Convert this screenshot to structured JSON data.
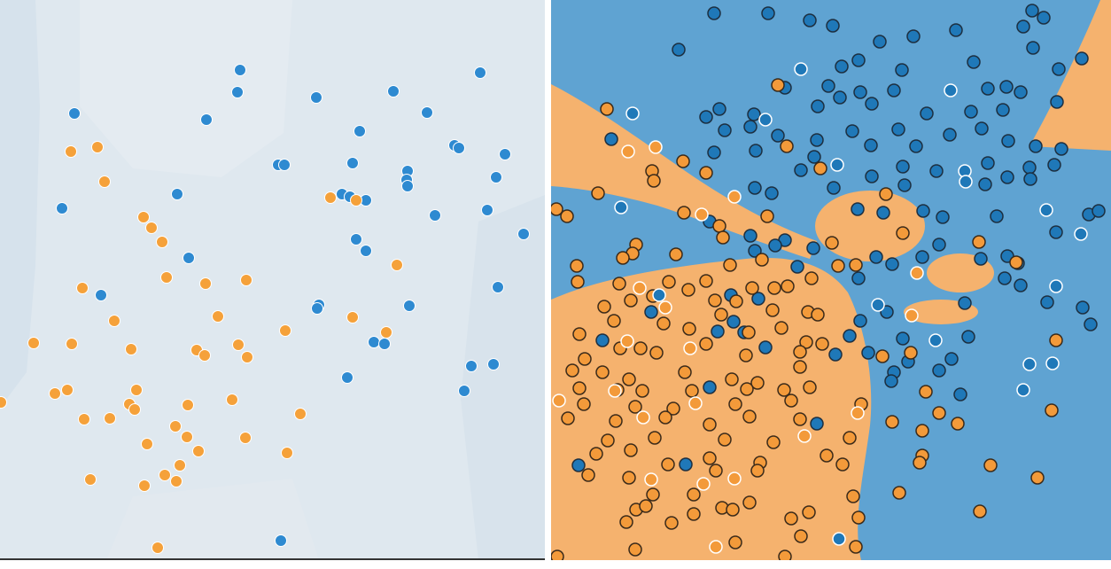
{
  "chart_data": [
    {
      "type": "scatter",
      "xlim": [
        0,
        615
      ],
      "ylim": [
        630,
        0
      ],
      "series": [
        {
          "color": "#2e8ad1",
          "outline": "#ffffff",
          "x": [
            271,
            268,
            542,
            444,
            357,
            84,
            233,
            482,
            406,
            513,
            518,
            570,
            314,
            321,
            398,
            460,
            459,
            460,
            560,
            200,
            386,
            395,
            413,
            70,
            491,
            550,
            591,
            402,
            413,
            213,
            562,
            114,
            462,
            360,
            358,
            422,
            434,
            557,
            532,
            392,
            524,
            317
          ],
          "values": [
            79,
            104,
            82,
            103,
            110,
            128,
            135,
            127,
            148,
            164,
            167,
            174,
            186,
            186,
            184,
            193,
            203,
            210,
            200,
            219,
            219,
            222,
            226,
            235,
            243,
            237,
            264,
            270,
            283,
            291,
            324,
            333,
            345,
            344,
            348,
            386,
            388,
            411,
            413,
            426,
            441,
            610
          ]
        },
        {
          "color": "#f5a13a",
          "outline": "#ffffff",
          "x": [
            80,
            110,
            118,
            373,
            402,
            162,
            171,
            183,
            448,
            188,
            93,
            232,
            278,
            246,
            129,
            398,
            322,
            436,
            38,
            81,
            148,
            269,
            222,
            231,
            279,
            76,
            62,
            154,
            146,
            152,
            212,
            262,
            95,
            124,
            339,
            198,
            211,
            277,
            166,
            224,
            324,
            203,
            186,
            199,
            102,
            163,
            1,
            178
          ],
          "values": [
            171,
            166,
            205,
            223,
            226,
            245,
            257,
            273,
            299,
            313,
            325,
            320,
            316,
            357,
            362,
            358,
            373,
            375,
            387,
            388,
            394,
            389,
            395,
            401,
            403,
            440,
            444,
            440,
            456,
            462,
            457,
            451,
            473,
            472,
            467,
            481,
            493,
            494,
            501,
            509,
            511,
            525,
            536,
            543,
            541,
            548,
            454,
            618
          ]
        }
      ]
    },
    {
      "type": "scatter",
      "xlim": [
        0,
        632
      ],
      "ylim": [
        630,
        0
      ],
      "series": [
        {
          "color": "#1f78b8",
          "outline": "#1d2f40",
          "x": [
            184,
            245,
            292,
            318,
            543,
            556,
            144,
            371,
            409,
            457,
            477,
            533,
            544,
            328,
            347,
            396,
            573,
            599,
            264,
            313,
            326,
            349,
            387,
            493,
            514,
            530,
            571,
            175,
            190,
            229,
            301,
            362,
            424,
            474,
            510,
            68,
            196,
            225,
            256,
            300,
            340,
            392,
            450,
            486,
            516,
            184,
            231,
            297,
            361,
            412,
            547,
            576,
            282,
            362,
            397,
            435,
            493,
            540,
            568,
            230,
            249,
            319,
            399,
            490,
            515,
            541,
            179,
            225,
            264,
            346,
            375,
            420,
            442,
            503,
            607,
            618,
            570,
            230,
            253,
            296,
            367,
            419,
            438,
            485,
            515,
            527,
            278,
            347,
            385,
            203,
            234,
            512,
            530,
            113,
            206,
            188,
            218,
            349,
            379,
            467,
            560,
            600,
            609,
            337,
            397,
            471,
            242,
            321,
            358,
            452,
            438,
            387,
            58,
            179,
            462,
            300,
            31,
            152,
            384,
            403
          ],
          "values": [
            15,
            15,
            23,
            29,
            12,
            20,
            56,
            47,
            41,
            34,
            70,
            30,
            54,
            75,
            68,
            79,
            78,
            66,
            99,
            97,
            110,
            104,
            102,
            100,
            98,
            104,
            115,
            132,
            123,
            129,
            120,
            117,
            128,
            126,
            124,
            157,
            147,
            143,
            153,
            158,
            148,
            146,
            152,
            145,
            159,
            172,
            170,
            177,
            164,
            165,
            165,
            168,
            192,
            199,
            188,
            193,
            184,
            189,
            186,
            212,
            218,
            212,
            209,
            208,
            200,
            202,
            250,
            266,
            271,
            236,
            240,
            238,
            245,
            244,
            242,
            238,
            262,
            283,
            277,
            280,
            290,
            290,
            276,
            292,
            289,
            297,
            301,
            314,
            298,
            333,
            337,
            314,
            322,
            352,
            363,
            374,
            375,
            362,
            352,
            342,
            341,
            347,
            366,
            379,
            382,
            380,
            392,
            400,
            398,
            405,
            418,
            420,
            384,
            437,
            445,
            478,
            525,
            524,
            430,
            408
          ]
        },
        {
          "color": "#f39a3a",
          "outline": "#3a2a1a",
          "x": [
            63,
            256,
            266,
            304,
            378,
            6,
            18,
            53,
            114,
            116,
            149,
            175,
            150,
            190,
            194,
            244,
            96,
            92,
            81,
            141,
            202,
            238,
            29,
            30,
            77,
            133,
            155,
            175,
            227,
            252,
            267,
            294,
            317,
            324,
            344,
            397,
            483,
            525,
            60,
            90,
            115,
            185,
            209,
            250,
            290,
            301,
            32,
            71,
            127,
            156,
            192,
            223,
            260,
            288,
            306,
            38,
            78,
            101,
            119,
            175,
            220,
            281,
            374,
            406,
            570,
            24,
            58,
            88,
            151,
            204,
            233,
            281,
            32,
            75,
            103,
            159,
            221,
            263,
            292,
            37,
            95,
            138,
            208,
            271,
            350,
            423,
            19,
            73,
            129,
            179,
            224,
            281,
            385,
            438,
            459,
            565,
            64,
            117,
            196,
            251,
            337,
            419,
            51,
            90,
            132,
            179,
            236,
            311,
            419,
            496,
            42,
            88,
            186,
            233,
            329,
            416,
            549,
            115,
            161,
            224,
            341,
            393,
            96,
            107,
            161,
            193,
            205,
            271,
            291,
            347,
            484,
            85,
            136,
            282,
            208,
            95,
            344,
            7,
            264
          ],
          "values": [
            123,
            96,
            165,
            190,
            219,
            236,
            244,
            218,
            193,
            204,
            182,
            195,
            240,
            255,
            268,
            244,
            276,
            286,
            291,
            287,
            299,
            293,
            300,
            318,
            320,
            318,
            327,
            317,
            325,
            325,
            323,
            314,
            274,
            300,
            299,
            263,
            273,
            296,
            346,
            339,
            334,
            339,
            340,
            350,
            352,
            355,
            377,
            362,
            365,
            371,
            355,
            375,
            370,
            386,
            388,
            405,
            393,
            393,
            398,
            388,
            401,
            397,
            402,
            398,
            384,
            418,
            420,
            428,
            420,
            428,
            432,
            414,
            438,
            440,
            441,
            441,
            439,
            440,
            437,
            456,
            459,
            461,
            456,
            452,
            456,
            442,
            472,
            475,
            471,
            479,
            470,
            473,
            476,
            466,
            478,
            463,
            497,
            494,
            496,
            499,
            494,
            486,
            512,
            508,
            524,
            517,
            522,
            514,
            514,
            525,
            536,
            539,
            531,
            531,
            524,
            522,
            539,
            558,
            558,
            567,
            560,
            556,
            575,
            571,
            580,
            573,
            575,
            585,
            578,
            584,
            577,
            589,
            590,
            605,
            612,
            620,
            617,
            628,
            628
          ]
        },
        {
          "color": "#1f78b8",
          "outline": "#ffffff",
          "x": [
            451,
            282,
            92,
            242,
            323,
            467,
            468,
            79,
            559,
            598,
            570,
            122,
            369,
            434,
            540,
            566,
            533,
            325
          ],
          "values": [
            102,
            78,
            128,
            135,
            186,
            193,
            205,
            234,
            237,
            264,
            323,
            333,
            344,
            384,
            411,
            410,
            440,
            608
          ]
        },
        {
          "color": "#f39a3a",
          "outline": "#ffffff",
          "x": [
            118,
            87,
            207,
            170,
            100,
            129,
            86,
            157,
            72,
            163,
            104,
            346,
            286,
            113,
            172,
            207,
            9,
            186,
            407,
            413
          ],
          "values": [
            166,
            171,
            222,
            242,
            325,
            347,
            385,
            393,
            441,
            455,
            471,
            466,
            492,
            541,
            546,
            540,
            452,
            617,
            356,
            308
          ]
        }
      ]
    }
  ]
}
